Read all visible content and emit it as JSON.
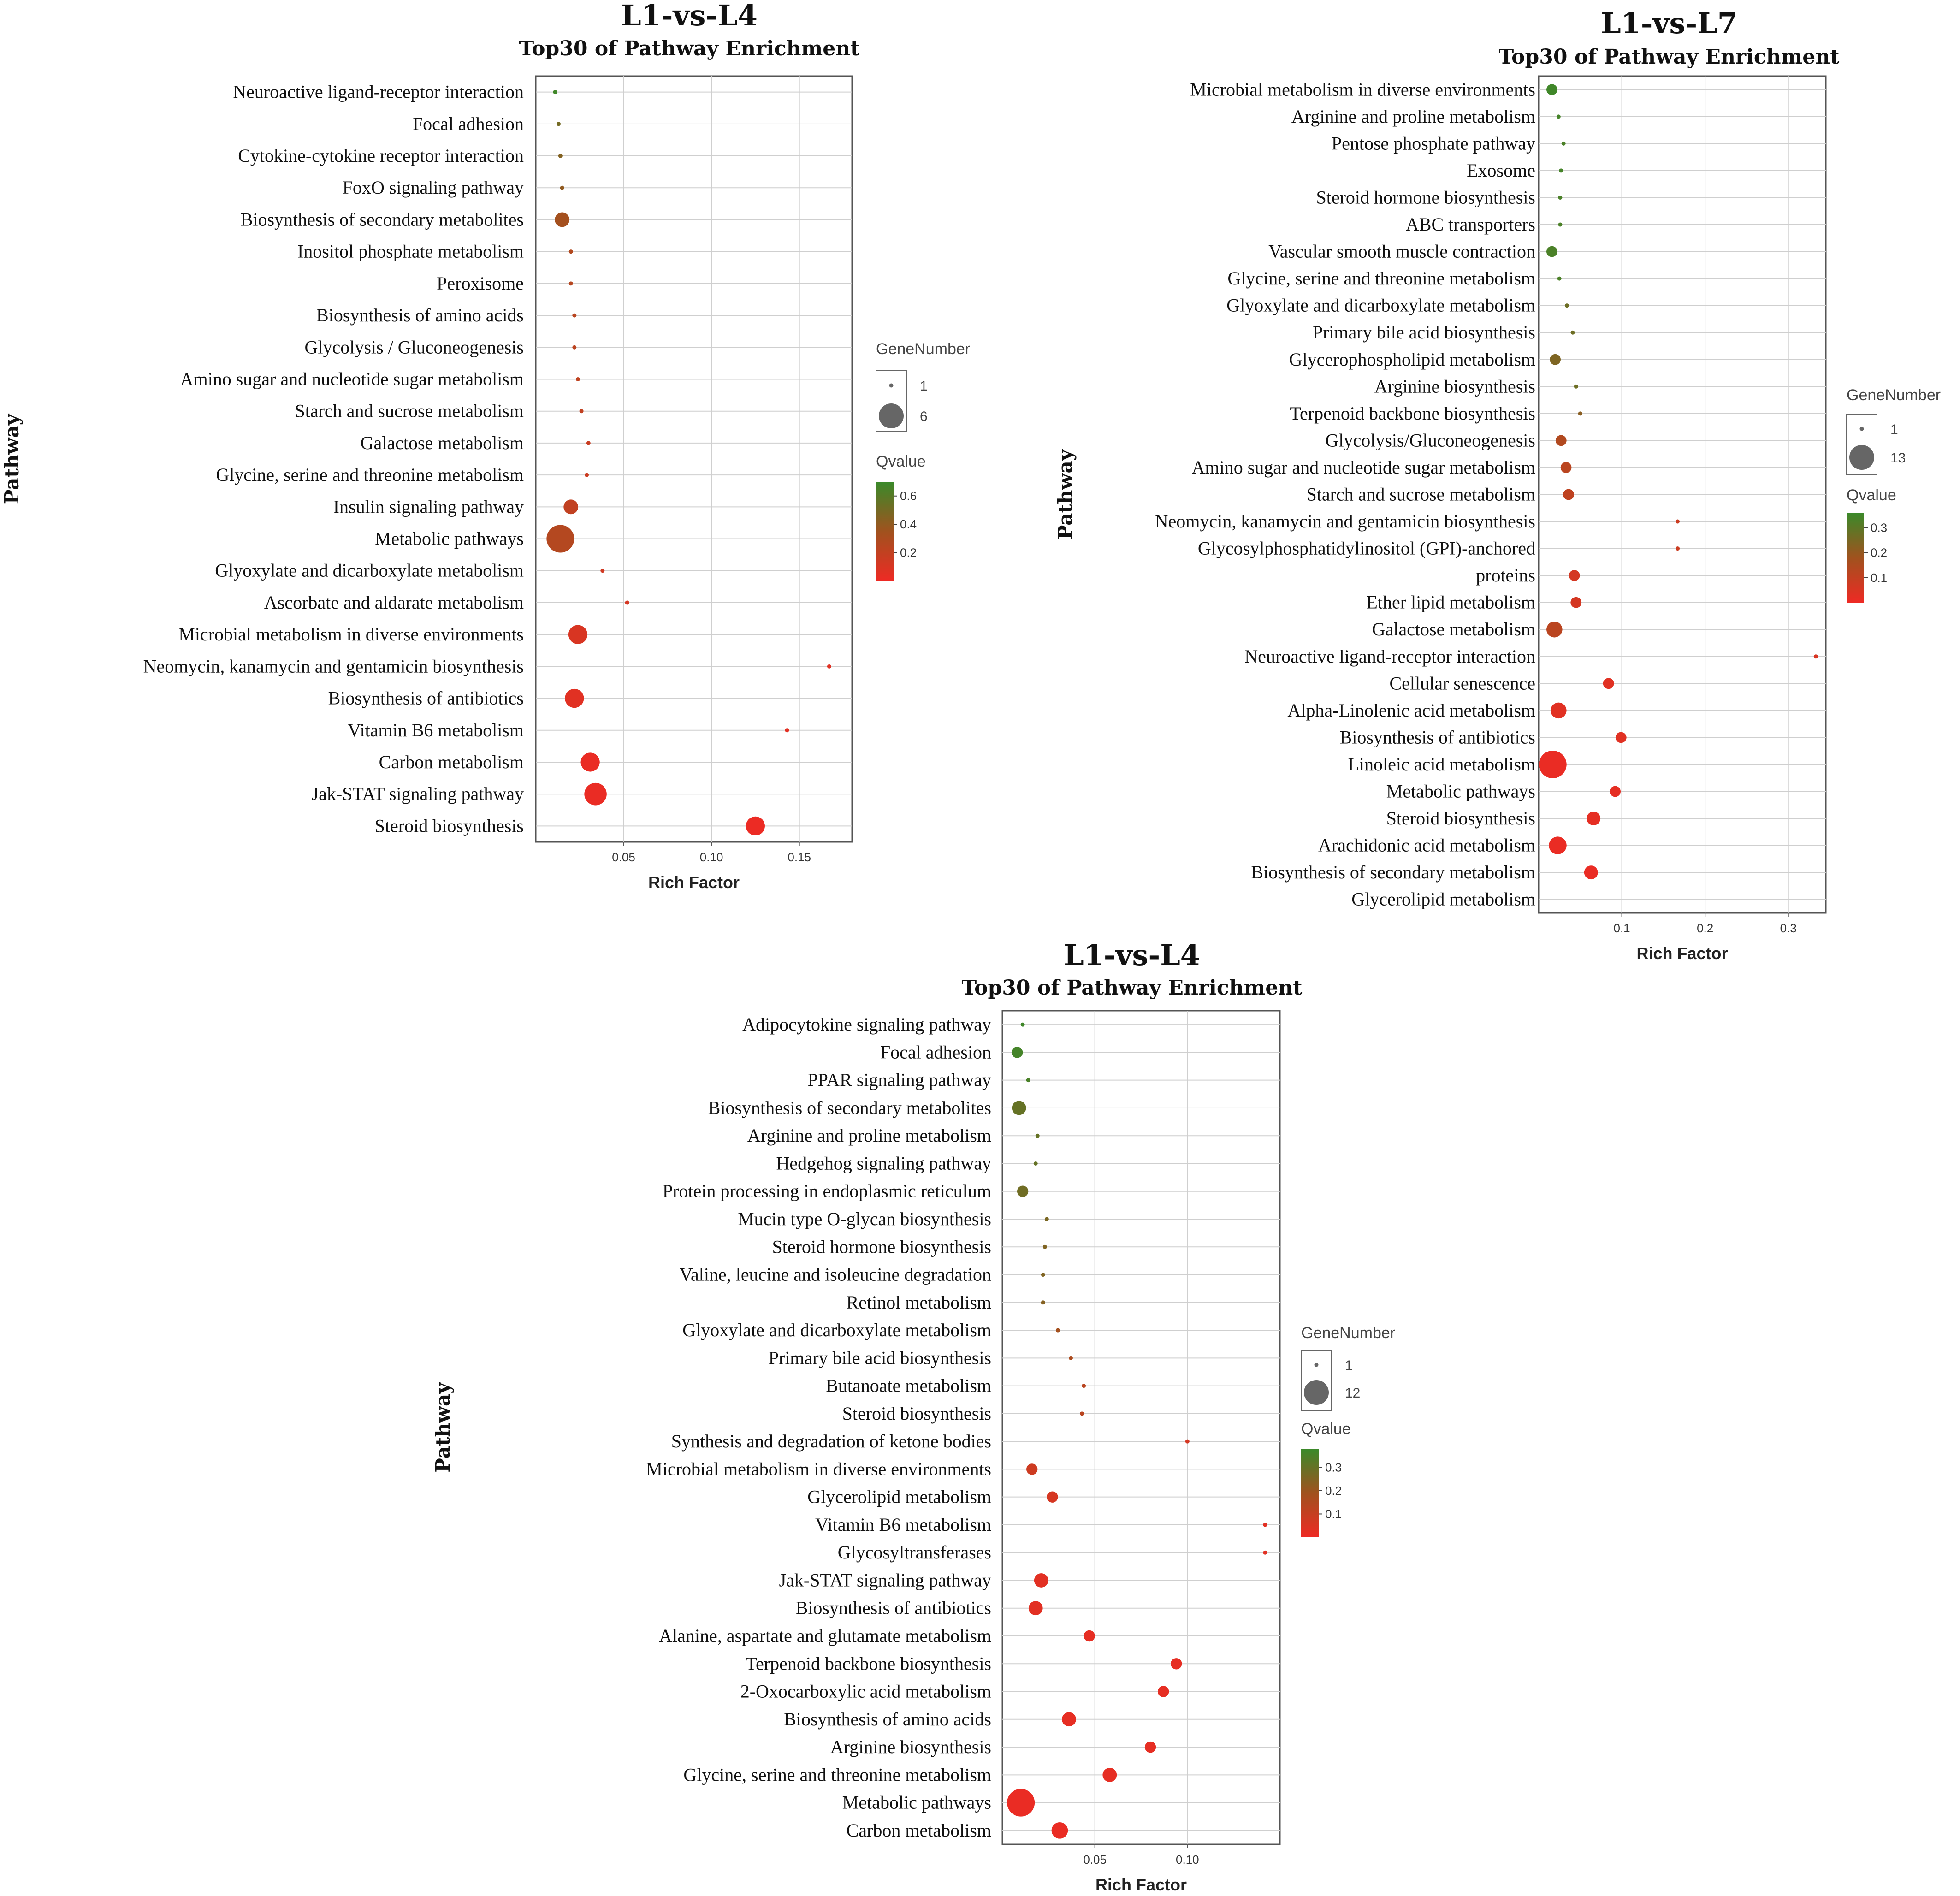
{
  "colors": {
    "high_q": "#3a8a2a",
    "low_q": "#ee2a24",
    "mid_q": "#a0521e",
    "grid": "#cfcfcf",
    "frame": "#555555"
  },
  "chart_data": [
    {
      "type": "scatter",
      "title": "L1-vs-L4",
      "subtitle": "Top30 of Pathway Enrichment",
      "xlabel": "Rich Factor",
      "ylabel": "Pathway",
      "xlim": [
        0,
        0.18
      ],
      "xticks": [
        0.05,
        0.1,
        0.15
      ],
      "xtick_labels": [
        "0.05",
        "0.10",
        "0.15"
      ],
      "size_legend": {
        "title": "GeneNumber",
        "min": 1,
        "max": 6,
        "min_label": "1",
        "max_label": "6"
      },
      "color_legend": {
        "title": "Qvalue",
        "min": 0,
        "max": 0.7,
        "ticks": [
          0.6,
          0.4,
          0.2
        ],
        "tick_labels": [
          "0.6",
          "0.4",
          "0.2"
        ]
      },
      "points": [
        {
          "pathway": "Neuroactive ligand-receptor interaction",
          "rich_factor": 0.011,
          "gene_number": 1,
          "qvalue": 0.68
        },
        {
          "pathway": "Focal adhesion",
          "rich_factor": 0.013,
          "gene_number": 1,
          "qvalue": 0.5
        },
        {
          "pathway": "Cytokine-cytokine receptor interaction",
          "rich_factor": 0.014,
          "gene_number": 1,
          "qvalue": 0.45
        },
        {
          "pathway": "FoxO signaling pathway",
          "rich_factor": 0.015,
          "gene_number": 1,
          "qvalue": 0.4
        },
        {
          "pathway": "Biosynthesis of secondary metabolites",
          "rich_factor": 0.015,
          "gene_number": 2,
          "qvalue": 0.33
        },
        {
          "pathway": "Inositol phosphate metabolism",
          "rich_factor": 0.02,
          "gene_number": 1,
          "qvalue": 0.27
        },
        {
          "pathway": "Peroxisome",
          "rich_factor": 0.02,
          "gene_number": 1,
          "qvalue": 0.25
        },
        {
          "pathway": "Biosynthesis of amino acids",
          "rich_factor": 0.022,
          "gene_number": 1,
          "qvalue": 0.24
        },
        {
          "pathway": "Glycolysis / Gluconeogenesis",
          "rich_factor": 0.022,
          "gene_number": 1,
          "qvalue": 0.23
        },
        {
          "pathway": "Amino sugar and nucleotide sugar metabolism",
          "rich_factor": 0.024,
          "gene_number": 1,
          "qvalue": 0.21
        },
        {
          "pathway": "Starch and sucrose metabolism",
          "rich_factor": 0.026,
          "gene_number": 1,
          "qvalue": 0.2
        },
        {
          "pathway": "Galactose metabolism",
          "rich_factor": 0.03,
          "gene_number": 1,
          "qvalue": 0.17
        },
        {
          "pathway": "Glycine, serine and threonine metabolism",
          "rich_factor": 0.029,
          "gene_number": 1,
          "qvalue": 0.16
        },
        {
          "pathway": "Insulin signaling pathway",
          "rich_factor": 0.02,
          "gene_number": 2,
          "qvalue": 0.2
        },
        {
          "pathway": "Metabolic pathways",
          "rich_factor": 0.014,
          "gene_number": 6,
          "qvalue": 0.26
        },
        {
          "pathway": "Glyoxylate and dicarboxylate metabolism",
          "rich_factor": 0.038,
          "gene_number": 1,
          "qvalue": 0.13
        },
        {
          "pathway": "Ascorbate and aldarate metabolism",
          "rich_factor": 0.052,
          "gene_number": 1,
          "qvalue": 0.11
        },
        {
          "pathway": "Microbial metabolism in diverse environments",
          "rich_factor": 0.024,
          "gene_number": 3,
          "qvalue": 0.1
        },
        {
          "pathway": "Neomycin, kanamycin and gentamicin biosynthesis",
          "rich_factor": 0.167,
          "gene_number": 1,
          "qvalue": 0.06
        },
        {
          "pathway": "Biosynthesis of antibiotics",
          "rich_factor": 0.022,
          "gene_number": 3,
          "qvalue": 0.06
        },
        {
          "pathway": "Vitamin B6 metabolism",
          "rich_factor": 0.143,
          "gene_number": 1,
          "qvalue": 0.05
        },
        {
          "pathway": "Carbon metabolism",
          "rich_factor": 0.031,
          "gene_number": 3,
          "qvalue": 0.02
        },
        {
          "pathway": "Jak-STAT signaling pathway",
          "rich_factor": 0.034,
          "gene_number": 4,
          "qvalue": 0.02
        },
        {
          "pathway": "Steroid biosynthesis",
          "rich_factor": 0.125,
          "gene_number": 3,
          "qvalue": 0.01
        }
      ]
    },
    {
      "type": "scatter",
      "title": "L1-vs-L7",
      "subtitle": "Top30 of Pathway Enrichment",
      "xlabel": "Rich Factor",
      "ylabel": "Pathway",
      "xlim": [
        0,
        0.345
      ],
      "xticks": [
        0.1,
        0.2,
        0.3
      ],
      "xtick_labels": [
        "0.1",
        "0.2",
        "0.3"
      ],
      "size_legend": {
        "title": "GeneNumber",
        "min": 1,
        "max": 13,
        "min_label": "1",
        "max_label": "13"
      },
      "color_legend": {
        "title": "Qvalue",
        "min": 0,
        "max": 0.36,
        "ticks": [
          0.3,
          0.2,
          0.1
        ],
        "tick_labels": [
          "0.3",
          "0.2",
          "0.1"
        ]
      },
      "points": [
        {
          "pathway": "Microbial metabolism in diverse environments",
          "rich_factor": 0.016,
          "gene_number": 2,
          "qvalue": 0.35
        },
        {
          "pathway": "Arginine and proline metabolism",
          "rich_factor": 0.024,
          "gene_number": 1,
          "qvalue": 0.34
        },
        {
          "pathway": "Pentose phosphate pathway",
          "rich_factor": 0.03,
          "gene_number": 1,
          "qvalue": 0.33
        },
        {
          "pathway": "Exosome",
          "rich_factor": 0.027,
          "gene_number": 1,
          "qvalue": 0.34
        },
        {
          "pathway": "Steroid hormone biosynthesis",
          "rich_factor": 0.026,
          "gene_number": 1,
          "qvalue": 0.33
        },
        {
          "pathway": "ABC transporters",
          "rich_factor": 0.026,
          "gene_number": 1,
          "qvalue": 0.33
        },
        {
          "pathway": "Vascular smooth muscle contraction",
          "rich_factor": 0.016,
          "gene_number": 2,
          "qvalue": 0.33
        },
        {
          "pathway": "Glycine, serine and threonine metabolism",
          "rich_factor": 0.025,
          "gene_number": 1,
          "qvalue": 0.33
        },
        {
          "pathway": "Glyoxylate and dicarboxylate metabolism",
          "rich_factor": 0.034,
          "gene_number": 1,
          "qvalue": 0.27
        },
        {
          "pathway": "Primary bile acid biosynthesis",
          "rich_factor": 0.041,
          "gene_number": 1,
          "qvalue": 0.27
        },
        {
          "pathway": "Glycerophospholipid metabolism",
          "rich_factor": 0.02,
          "gene_number": 2,
          "qvalue": 0.24
        },
        {
          "pathway": "Arginine biosynthesis",
          "rich_factor": 0.045,
          "gene_number": 1,
          "qvalue": 0.27
        },
        {
          "pathway": "Terpenoid backbone biosynthesis",
          "rich_factor": 0.05,
          "gene_number": 1,
          "qvalue": 0.22
        },
        {
          "pathway": "Glycolysis/Gluconeogenesis",
          "rich_factor": 0.027,
          "gene_number": 2,
          "qvalue": 0.14
        },
        {
          "pathway": "Amino sugar and nucleotide sugar metabolism",
          "rich_factor": 0.033,
          "gene_number": 2,
          "qvalue": 0.12
        },
        {
          "pathway": "Starch and sucrose metabolism",
          "rich_factor": 0.036,
          "gene_number": 2,
          "qvalue": 0.11
        },
        {
          "pathway": "Neomycin, kanamycin and gentamicin biosynthesis",
          "rich_factor": 0.167,
          "gene_number": 1,
          "qvalue": 0.08
        },
        {
          "pathway": "Glycosylphosphatidylinositol (GPI)-anchored",
          "rich_factor": 0.167,
          "gene_number": 1,
          "qvalue": 0.08
        },
        {
          "pathway": "proteins",
          "rich_factor": 0.043,
          "gene_number": 2,
          "qvalue": 0.06
        },
        {
          "pathway": "Ether lipid metabolism",
          "rich_factor": 0.045,
          "gene_number": 2,
          "qvalue": 0.06
        },
        {
          "pathway": "Galactose metabolism",
          "rich_factor": 0.019,
          "gene_number": 4,
          "qvalue": 0.12
        },
        {
          "pathway": "Neuroactive ligand-receptor interaction",
          "rich_factor": 0.333,
          "gene_number": 1,
          "qvalue": 0.05
        },
        {
          "pathway": "Cellular senescence",
          "rich_factor": 0.084,
          "gene_number": 2,
          "qvalue": 0.03
        },
        {
          "pathway": "Alpha-Linolenic acid metabolism",
          "rich_factor": 0.024,
          "gene_number": 4,
          "qvalue": 0.03
        },
        {
          "pathway": "Biosynthesis of antibiotics",
          "rich_factor": 0.099,
          "gene_number": 2,
          "qvalue": 0.03
        },
        {
          "pathway": "Linoleic acid metabolism",
          "rich_factor": 0.017,
          "gene_number": 13,
          "qvalue": 0.01
        },
        {
          "pathway": "Metabolic pathways",
          "rich_factor": 0.092,
          "gene_number": 2,
          "qvalue": 0.02
        },
        {
          "pathway": "Steroid biosynthesis",
          "rich_factor": 0.066,
          "gene_number": 3,
          "qvalue": 0.02
        },
        {
          "pathway": "Arachidonic acid metabolism",
          "rich_factor": 0.023,
          "gene_number": 5,
          "qvalue": 0.01
        },
        {
          "pathway": "Biosynthesis of secondary metabolism",
          "rich_factor": 0.063,
          "gene_number": 3,
          "qvalue": 0.01
        }
      ],
      "extra_row_labels": [
        "Glycerolipid metabolism"
      ]
    },
    {
      "type": "scatter",
      "title": "L1-vs-L4",
      "subtitle": "Top30 of Pathway Enrichment",
      "xlabel": "Rich Factor",
      "ylabel": "Pathway",
      "xlim": [
        0,
        0.15
      ],
      "xticks": [
        0.05,
        0.1
      ],
      "xtick_labels": [
        "0.05",
        "0.10"
      ],
      "size_legend": {
        "title": "GeneNumber",
        "min": 1,
        "max": 12,
        "min_label": "1",
        "max_label": "12"
      },
      "color_legend": {
        "title": "Qvalue",
        "min": 0,
        "max": 0.38,
        "ticks": [
          0.3,
          0.2,
          0.1
        ],
        "tick_labels": [
          "0.3",
          "0.2",
          "0.1"
        ]
      },
      "points": [
        {
          "pathway": "Adipocytokine signaling pathway",
          "rich_factor": 0.011,
          "gene_number": 1,
          "qvalue": 0.37
        },
        {
          "pathway": "Focal adhesion",
          "rich_factor": 0.008,
          "gene_number": 2,
          "qvalue": 0.36
        },
        {
          "pathway": "PPAR signaling pathway",
          "rich_factor": 0.014,
          "gene_number": 1,
          "qvalue": 0.35
        },
        {
          "pathway": "Biosynthesis of secondary metabolites",
          "rich_factor": 0.009,
          "gene_number": 3,
          "qvalue": 0.3
        },
        {
          "pathway": "Arginine and proline metabolism",
          "rich_factor": 0.019,
          "gene_number": 1,
          "qvalue": 0.3
        },
        {
          "pathway": "Hedgehog signaling pathway",
          "rich_factor": 0.018,
          "gene_number": 1,
          "qvalue": 0.3
        },
        {
          "pathway": "Protein processing in endoplasmic reticulum",
          "rich_factor": 0.011,
          "gene_number": 2,
          "qvalue": 0.28
        },
        {
          "pathway": "Mucin type O-glycan biosynthesis",
          "rich_factor": 0.024,
          "gene_number": 1,
          "qvalue": 0.26
        },
        {
          "pathway": "Steroid hormone biosynthesis",
          "rich_factor": 0.023,
          "gene_number": 1,
          "qvalue": 0.25
        },
        {
          "pathway": "Valine, leucine and isoleucine degradation",
          "rich_factor": 0.022,
          "gene_number": 1,
          "qvalue": 0.25
        },
        {
          "pathway": "Retinol metabolism",
          "rich_factor": 0.022,
          "gene_number": 1,
          "qvalue": 0.24
        },
        {
          "pathway": "Glyoxylate and dicarboxylate metabolism",
          "rich_factor": 0.03,
          "gene_number": 1,
          "qvalue": 0.18
        },
        {
          "pathway": "Primary bile acid biosynthesis",
          "rich_factor": 0.037,
          "gene_number": 1,
          "qvalue": 0.16
        },
        {
          "pathway": "Butanoate metabolism",
          "rich_factor": 0.044,
          "gene_number": 1,
          "qvalue": 0.13
        },
        {
          "pathway": "Steroid biosynthesis",
          "rich_factor": 0.043,
          "gene_number": 1,
          "qvalue": 0.13
        },
        {
          "pathway": "Synthesis and degradation of ketone bodies",
          "rich_factor": 0.1,
          "gene_number": 1,
          "qvalue": 0.06
        },
        {
          "pathway": "Microbial metabolism in diverse environments",
          "rich_factor": 0.016,
          "gene_number": 2,
          "qvalue": 0.08
        },
        {
          "pathway": "Glycerolipid metabolism",
          "rich_factor": 0.027,
          "gene_number": 2,
          "qvalue": 0.06
        },
        {
          "pathway": "Vitamin B6 metabolism",
          "rich_factor": 0.142,
          "gene_number": 1,
          "qvalue": 0.03
        },
        {
          "pathway": "Glycosyltransferases",
          "rich_factor": 0.142,
          "gene_number": 1,
          "qvalue": 0.03
        },
        {
          "pathway": "Jak-STAT signaling pathway",
          "rich_factor": 0.021,
          "gene_number": 3,
          "qvalue": 0.03
        },
        {
          "pathway": "Biosynthesis of antibiotics",
          "rich_factor": 0.018,
          "gene_number": 3,
          "qvalue": 0.03
        },
        {
          "pathway": "Alanine, aspartate and glutamate metabolism",
          "rich_factor": 0.047,
          "gene_number": 2,
          "qvalue": 0.02
        },
        {
          "pathway": "Terpenoid backbone biosynthesis",
          "rich_factor": 0.094,
          "gene_number": 2,
          "qvalue": 0.02
        },
        {
          "pathway": "2-Oxocarboxylic acid metabolism",
          "rich_factor": 0.087,
          "gene_number": 2,
          "qvalue": 0.02
        },
        {
          "pathway": "Biosynthesis of amino acids",
          "rich_factor": 0.036,
          "gene_number": 3,
          "qvalue": 0.02
        },
        {
          "pathway": "Arginine biosynthesis",
          "rich_factor": 0.08,
          "gene_number": 2,
          "qvalue": 0.02
        },
        {
          "pathway": "Glycine, serine and threonine metabolism",
          "rich_factor": 0.058,
          "gene_number": 3,
          "qvalue": 0.02
        },
        {
          "pathway": "Metabolic pathways",
          "rich_factor": 0.01,
          "gene_number": 12,
          "qvalue": 0.01
        },
        {
          "pathway": "Carbon metabolism",
          "rich_factor": 0.031,
          "gene_number": 4,
          "qvalue": 0.01
        }
      ]
    }
  ]
}
